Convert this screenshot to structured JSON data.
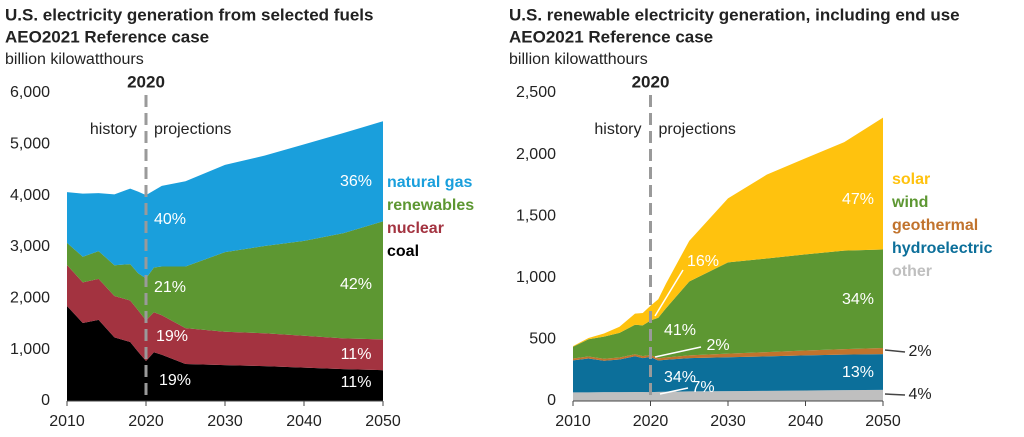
{
  "chart_data": [
    {
      "type": "stacked-area",
      "title": "U.S. electricity generation from selected fuels",
      "subtitle": "AEO2021 Reference case",
      "y_label": "billion kilowatthours",
      "marker_label": "2020",
      "history_label": "history",
      "projections_label": "projections",
      "x": [
        2010,
        2012,
        2014,
        2016,
        2018,
        2019,
        2020,
        2021,
        2022,
        2025,
        2030,
        2035,
        2040,
        2045,
        2050
      ],
      "series": [
        {
          "name": "coal",
          "color": "#000000",
          "values": [
            1850,
            1520,
            1580,
            1240,
            1150,
            960,
            780,
            950,
            900,
            720,
            700,
            680,
            650,
            620,
            600
          ]
        },
        {
          "name": "nuclear",
          "color": "#a33340",
          "values": [
            800,
            790,
            800,
            805,
            807,
            809,
            790,
            780,
            770,
            700,
            650,
            640,
            620,
            600,
            600
          ]
        },
        {
          "name": "renewables",
          "color": "#5d9732",
          "values": [
            430,
            500,
            540,
            600,
            710,
            720,
            820,
            870,
            950,
            1200,
            1550,
            1700,
            1850,
            2050,
            2300
          ]
        },
        {
          "name": "natural gas",
          "color": "#1a9fdc",
          "values": [
            990,
            1230,
            1130,
            1380,
            1470,
            1590,
            1620,
            1500,
            1570,
            1660,
            1700,
            1760,
            1880,
            1950,
            1950
          ]
        }
      ],
      "annotations": [
        "40%",
        "36%",
        "21%",
        "42%",
        "19%",
        "11%",
        "19%",
        "11%"
      ],
      "xlim": [
        2010,
        2050
      ],
      "xticks": [
        2010,
        2020,
        2030,
        2040,
        2050
      ],
      "ylim": [
        0,
        6000
      ],
      "yticks": [
        0,
        {
          "value": 1000,
          "label": "1,000"
        },
        {
          "value": 2000,
          "label": "2,000"
        },
        {
          "value": 3000,
          "label": "3,000"
        },
        {
          "value": 4000,
          "label": "4,000"
        },
        {
          "value": 5000,
          "label": "5,000"
        },
        {
          "value": 6000,
          "label": "6,000"
        }
      ]
    },
    {
      "type": "stacked-area",
      "title": "U.S. renewable electricity generation, including end use",
      "subtitle": "AEO2021 Reference case",
      "y_label": "billion kilowatthours",
      "marker_label": "2020",
      "history_label": "history",
      "projections_label": "projections",
      "x": [
        2010,
        2012,
        2014,
        2016,
        2018,
        2019,
        2020,
        2021,
        2022,
        2025,
        2030,
        2035,
        2040,
        2045,
        2050
      ],
      "series": [
        {
          "name": "other",
          "color": "#bfbfbf",
          "values": [
            70,
            70,
            72,
            72,
            73,
            73,
            72,
            74,
            75,
            78,
            80,
            82,
            85,
            88,
            90
          ]
        },
        {
          "name": "hydroelectric",
          "color": "#0c6f9a",
          "values": [
            260,
            275,
            255,
            265,
            290,
            275,
            285,
            255,
            260,
            270,
            275,
            280,
            285,
            288,
            290
          ]
        },
        {
          "name": "geothermal",
          "color": "#c1732d",
          "values": [
            15,
            16,
            16,
            16,
            16,
            16,
            16,
            17,
            18,
            22,
            30,
            35,
            40,
            45,
            50
          ]
        },
        {
          "name": "wind",
          "color": "#5d9732",
          "values": [
            95,
            140,
            180,
            200,
            240,
            250,
            280,
            330,
            400,
            600,
            740,
            760,
            780,
            800,
            800
          ]
        },
        {
          "name": "solar",
          "color": "#ffc20e",
          "values": [
            5,
            10,
            25,
            50,
            90,
            100,
            120,
            150,
            200,
            330,
            520,
            680,
            780,
            880,
            1070
          ]
        }
      ],
      "annotations": [
        "16%",
        "41%",
        "34%",
        "47%",
        "2%",
        "34%",
        "7%",
        "13%",
        "2%",
        "4%"
      ],
      "xlim": [
        2010,
        2050
      ],
      "xticks": [
        2010,
        2020,
        2030,
        2040,
        2050
      ],
      "ylim": [
        0,
        2500
      ],
      "yticks": [
        0,
        500,
        {
          "value": 1000,
          "label": "1,000"
        },
        {
          "value": 1500,
          "label": "1,500"
        },
        {
          "value": 2000,
          "label": "2,000"
        },
        {
          "value": 2500,
          "label": "2,500"
        }
      ]
    }
  ]
}
